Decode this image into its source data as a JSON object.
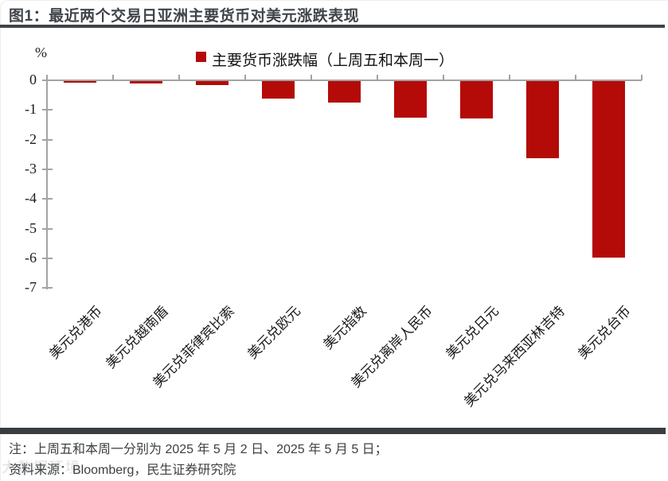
{
  "header": {
    "title": "图1：最近两个交易日亚洲主要货币对美元涨跌表现"
  },
  "chart_data": {
    "type": "bar",
    "title": "最近两个交易日亚洲主要货币对美元涨跌表现",
    "legend": "主要货币涨跌幅（上周五和本周一）",
    "y_unit_label": "%",
    "categories": [
      "美元兑港币",
      "美元兑越南盾",
      "美元兑菲律宾比索",
      "美元兑欧元",
      "美元指数",
      "美元兑离岸人民币",
      "美元兑日元",
      "美元兑马来西亚林吉特",
      "美元兑台币"
    ],
    "values": [
      -0.05,
      -0.09,
      -0.14,
      -0.58,
      -0.73,
      -1.22,
      -1.27,
      -2.6,
      -5.94
    ],
    "ylim": [
      -7,
      0
    ],
    "yticks": [
      0,
      -1,
      -2,
      -3,
      -4,
      -5,
      -6,
      -7
    ],
    "grid": false,
    "legend_position": "top",
    "bar_color": "#B40A08"
  },
  "footer": {
    "note": "注：上周五和本周一分别为 2025 年 5 月 2 日、2025 年 5 月 5 日；",
    "source": "资料来源：Bloomberg，民生证券研究院",
    "watermark": "大数据环境"
  },
  "colors": {
    "bar": "#B40A08",
    "axis": "#A3A3A3",
    "title_rule": "#3F444A",
    "footer_rule": "#3A3D40"
  }
}
